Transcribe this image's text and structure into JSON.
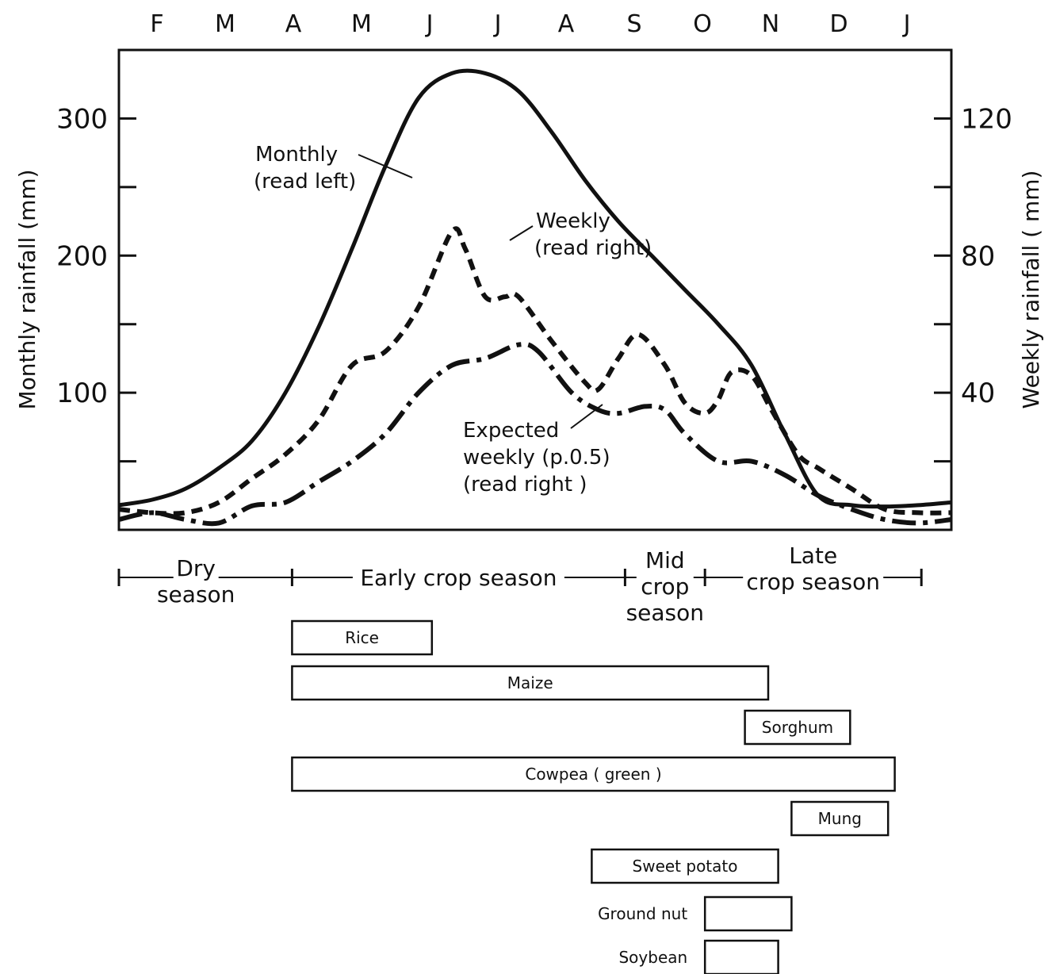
{
  "chart_data": {
    "type": "line",
    "months": [
      "F",
      "M",
      "A",
      "M",
      "J",
      "J",
      "A",
      "S",
      "O",
      "N",
      "D",
      "J"
    ],
    "y_left": {
      "label": "Monthly rainfall (mm)",
      "range": [
        0,
        350
      ],
      "ticks": [
        100,
        200,
        300
      ],
      "minor_step": 50
    },
    "y_right": {
      "label": "Weekly rainfall ( mm)",
      "range": [
        0,
        140
      ],
      "ticks": [
        40,
        80,
        120
      ],
      "minor_step": 20
    },
    "x_range": [
      0,
      12.5
    ],
    "series": [
      {
        "name": "Monthly (read left)",
        "axis": "left",
        "style": "solid",
        "x": [
          0,
          0.5,
          1,
          1.5,
          2,
          2.5,
          3,
          3.5,
          4,
          4.5,
          5,
          5.5,
          6,
          6.5,
          7,
          7.5,
          8,
          8.5,
          9,
          9.5,
          10,
          10.5,
          11,
          11.5,
          12,
          12.5
        ],
        "y": [
          18,
          22,
          30,
          45,
          65,
          100,
          148,
          205,
          265,
          315,
          333,
          333,
          320,
          290,
          255,
          225,
          200,
          175,
          150,
          120,
          70,
          25,
          18,
          17,
          18,
          20
        ]
      },
      {
        "name": "Weekly (read right)",
        "axis": "right",
        "style": "dash",
        "x": [
          0,
          0.5,
          1,
          1.5,
          2,
          2.5,
          3,
          3.5,
          4,
          4.5,
          5,
          5.2,
          5.5,
          5.8,
          6,
          6.5,
          7,
          7.2,
          7.5,
          7.8,
          8.2,
          8.5,
          8.8,
          9,
          9.2,
          9.5,
          9.8,
          10.2,
          10.5,
          11,
          11.5,
          12,
          12.5
        ],
        "y": [
          6,
          5,
          5,
          8,
          15,
          22,
          32,
          48,
          52,
          65,
          87,
          82,
          68,
          68,
          68,
          55,
          43,
          41,
          50,
          57,
          48,
          37,
          34,
          38,
          46,
          45,
          35,
          22,
          18,
          12,
          6,
          5,
          5
        ]
      },
      {
        "name": "Expected weekly (p.0.5) (read right)",
        "axis": "right",
        "style": "dashdot",
        "x": [
          0,
          0.5,
          1,
          1.5,
          2,
          2.5,
          3,
          3.5,
          4,
          4.5,
          5,
          5.5,
          6,
          6.3,
          6.8,
          7.2,
          7.5,
          7.9,
          8.2,
          8.5,
          9,
          9.5,
          10,
          10.5,
          11,
          11.5,
          12,
          12.5
        ],
        "y": [
          3,
          5,
          3,
          2,
          7,
          8,
          14,
          20,
          28,
          40,
          48,
          50,
          54,
          52,
          40,
          35,
          34,
          36,
          35,
          28,
          20,
          20,
          16,
          10,
          6,
          3,
          2,
          3
        ]
      }
    ],
    "annotations": {
      "monthly": [
        "Monthly",
        "(read left)"
      ],
      "weekly": [
        "Weekly",
        "(read right)"
      ],
      "expected": [
        "Expected",
        "weekly (p.0.5)",
        "(read right )"
      ]
    },
    "seasons": [
      {
        "lines": [
          "Dry",
          "season"
        ],
        "start": 0,
        "end": 2.6
      },
      {
        "lines": [
          "Early crop season"
        ],
        "start": 2.6,
        "end": 7.6
      },
      {
        "lines": [
          "Mid",
          "crop",
          "season"
        ],
        "start": 7.6,
        "end": 8.8
      },
      {
        "lines": [
          "Late",
          "crop season"
        ],
        "start": 8.8,
        "end": 12.05
      }
    ],
    "crops": [
      {
        "label": "Rice",
        "start": 2.6,
        "end": 4.7,
        "label_position": "inside"
      },
      {
        "label": "Maize",
        "start": 2.6,
        "end": 9.75,
        "label_position": "inside"
      },
      {
        "label": "Sorghum",
        "start": 9.4,
        "end": 10.98,
        "label_position": "inside"
      },
      {
        "label": "Cowpea ( green )",
        "start": 2.6,
        "end": 11.65,
        "label_position": "inside"
      },
      {
        "label": "Mung",
        "start": 10.1,
        "end": 11.55,
        "label_position": "inside"
      },
      {
        "label": "Sweet potato",
        "start": 7.1,
        "end": 9.9,
        "label_position": "inside"
      },
      {
        "label": "Ground nut",
        "start": 8.8,
        "end": 10.1,
        "label_position": "left"
      },
      {
        "label": "Soybean",
        "start": 8.8,
        "end": 9.9,
        "label_position": "left"
      }
    ]
  }
}
